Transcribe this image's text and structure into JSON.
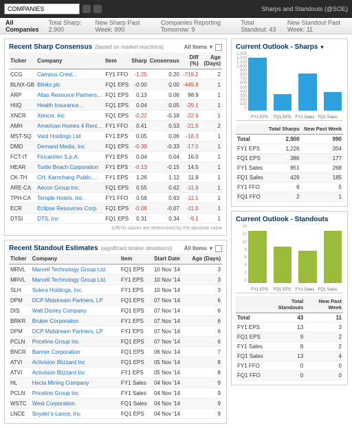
{
  "topbar": {
    "search_value": "COMPANIES",
    "title": "Sharps and Standouts (@SOE)"
  },
  "subbar": {
    "tab": "All Companies",
    "stats": [
      {
        "label": "Total Sharp:",
        "val": "2,900"
      },
      {
        "label": "New Sharp Past Week:",
        "val": "990"
      },
      {
        "label": "Companies Reporting Tomorrow:",
        "val": "9"
      },
      {
        "label": "Total Standout:",
        "val": "43"
      },
      {
        "label": "New Standout Past Week:",
        "val": "11"
      }
    ]
  },
  "sharp": {
    "title": "Recent Sharp Consensus",
    "sub": "(based on market reactions)",
    "tools": "All Items",
    "cols": [
      "Ticker",
      "Company",
      "Item",
      "Sharp",
      "Consensus",
      "Diff (%)",
      "Age (Days)"
    ],
    "rows": [
      [
        "CCG",
        "Campus Crest…",
        "FY1 FFO",
        "-1.25",
        "0.20",
        "-719.2",
        "2"
      ],
      [
        "BLNX-GB",
        "Blinkx plc",
        "FQ1 EPS",
        "-0.00",
        "0.00",
        "-449.8",
        "1"
      ],
      [
        "ARP",
        "Atlas Resource Partners…",
        "FQ1 EPS",
        "0.13",
        "0.06",
        "98.9",
        "1"
      ],
      [
        "HIIQ",
        "Health Insurance…",
        "FQ1 EPS",
        "0.04",
        "0.05",
        "-29.1",
        "1"
      ],
      [
        "XNCR",
        "Xencor, Inc",
        "FQ1 EPS",
        "-0.22",
        "-0.18",
        "-22.9",
        "1"
      ],
      [
        "AMH",
        "American Homes 4 Rent…",
        "FY1 FFO",
        "0.41",
        "0.53",
        "-21.5",
        "2"
      ],
      [
        "MST-SQ",
        "Vard Holdings Ltd",
        "FY1 EPS",
        "0.05",
        "0.06",
        "-18.3",
        "1"
      ],
      [
        "DMD",
        "Demand Media, Inc",
        "FQ1 EPS",
        "-0.39",
        "-0.33",
        "-17.0",
        "1"
      ],
      [
        "FCT-IT",
        "Fincantieri S.p.A.",
        "FY1 EPS",
        "0.04",
        "0.04",
        "16.0",
        "1"
      ],
      [
        "HEAR",
        "Turtle Beach Corporation",
        "FY1 EPS",
        "-0.13",
        "-0.15",
        "14.5",
        "1"
      ],
      [
        "CK-TH",
        "CH. Karnchang Public…",
        "FY1 EPS",
        "1.26",
        "1.12",
        "11.9",
        "1"
      ],
      [
        "ARE-CA",
        "Aecon Group Inc.",
        "FQ1 EPS",
        "0.55",
        "0.62",
        "-11.9",
        "1"
      ],
      [
        "TPH-CA",
        "Temple Hotels, Inc.",
        "FY1 FFO",
        "0.56",
        "0.63",
        "-11.1",
        "1"
      ],
      [
        "ECR",
        "Eclipse Resources Corp.",
        "FQ1 EPS",
        "-0.08",
        "-0.07",
        "-11.0",
        "1"
      ],
      [
        "DTSI",
        "DTS, Inc",
        "FQ1 EPS",
        "0.31",
        "0.34",
        "-9.1",
        "1"
      ]
    ],
    "footer": "Diff(%) values are determined by the absolute value"
  },
  "standout": {
    "title": "Recent Standout Estimates",
    "sub": "(significant broker deviations)",
    "tools": "All Items",
    "cols": [
      "Ticker",
      "Company",
      "Item",
      "Start Date",
      "Age (Days)"
    ],
    "rows": [
      [
        "MRVL",
        "Marvell Technology Group Ltd.",
        "FQ1 EPS",
        "10 Nov '14",
        "3"
      ],
      [
        "MRVL",
        "Marvell Technology Group Ltd.",
        "FY1 EPS",
        "10 Nov '14",
        "3"
      ],
      [
        "SLH",
        "Solera Holdings, Inc.",
        "FY1 EPS",
        "10 Nov '14",
        "3"
      ],
      [
        "DPM",
        "DCP Midstream Partners, LP",
        "FQ1 EPS",
        "07 Nov '14",
        "6"
      ],
      [
        "DIS",
        "Walt Disney Company",
        "FQ1 EPS",
        "07 Nov '14",
        "6"
      ],
      [
        "BRKR",
        "Bruker Corporation",
        "FY1 EPS",
        "07 Nov '14",
        "6"
      ],
      [
        "DPM",
        "DCP Midstream Partners, LP",
        "FY1 EPS",
        "07 Nov '14",
        "6"
      ],
      [
        "PCLN",
        "Priceline Group Inc",
        "FQ1 EPS",
        "07 Nov '14",
        "6"
      ],
      [
        "BNCR",
        "Banner Corporation",
        "FQ1 EPS",
        "06 Nov '14",
        "7"
      ],
      [
        "ATVI",
        "Activision Blizzard Inc",
        "FQ1 EPS",
        "05 Nov '14",
        "8"
      ],
      [
        "ATVI",
        "Activision Blizzard Inc",
        "FY1 EPS",
        "05 Nov '14",
        "8"
      ],
      [
        "HL",
        "Hecla Mining Company",
        "FY1 Sales",
        "04 Nov '14",
        "9"
      ],
      [
        "PCLN",
        "Priceline Group Inc",
        "FY1 Sales",
        "04 Nov '14",
        "9"
      ],
      [
        "WSTC",
        "West Corporation",
        "FQ1 Sales",
        "04 Nov '14",
        "9"
      ],
      [
        "LNCE",
        "Snyder's-Lance, Inc",
        "FQ1 EPS",
        "04 Nov '14",
        "9"
      ]
    ]
  },
  "outlook_sharps": {
    "title": "Current Outlook - Sharps",
    "chart": {
      "type": "bar",
      "ylim": [
        0,
        1300
      ],
      "color": "#2fa2dd",
      "bg": "#fff",
      "yticks": [
        "1,300",
        "1,200",
        "1,100",
        "1,000",
        "900",
        "800",
        "700",
        "600",
        "500",
        "400",
        "300",
        "200",
        "100",
        "0"
      ],
      "bars": [
        {
          "label": "FY1 EPS",
          "val": 1226
        },
        {
          "label": "FQ1 EPS",
          "val": 386
        },
        {
          "label": "FY1 Sales",
          "val": 851
        },
        {
          "label": "FQ1 Sales",
          "val": 429
        }
      ]
    },
    "summary": {
      "cols": [
        "",
        "Total Sharps",
        "New Past Week"
      ],
      "total": [
        "Total",
        "2,900",
        "990"
      ],
      "rows": [
        [
          "FY1 EPS",
          "1,226",
          "354"
        ],
        [
          "FQ1 EPS",
          "386",
          "177"
        ],
        [
          "FY1 Sales",
          "851",
          "268"
        ],
        [
          "FQ1 Sales",
          "429",
          "185"
        ],
        [
          "FY1 FFO",
          "6",
          "5"
        ],
        [
          "FQ1 FFO",
          "2",
          "1"
        ]
      ]
    }
  },
  "outlook_standouts": {
    "title": "Current Outlook - Standouts",
    "chart": {
      "type": "bar",
      "ylim": [
        0,
        14
      ],
      "color": "#9bbb3c",
      "bg": "#fff",
      "yticks": [
        "14",
        "12",
        "10",
        "8",
        "6",
        "4",
        "2",
        "0"
      ],
      "bars": [
        {
          "label": "FY1 EPS",
          "val": 13
        },
        {
          "label": "FQ1 EPS",
          "val": 9
        },
        {
          "label": "FY1 Sales",
          "val": 8
        },
        {
          "label": "FQ1 Sales",
          "val": 13
        }
      ]
    },
    "summary": {
      "cols": [
        "",
        "Total Standouts",
        "New Past Week"
      ],
      "total": [
        "Total",
        "43",
        "11"
      ],
      "rows": [
        [
          "FY1 EPS",
          "13",
          "3"
        ],
        [
          "FQ1 EPS",
          "9",
          "2"
        ],
        [
          "FY1 Sales",
          "8",
          "2"
        ],
        [
          "FQ1 Sales",
          "13",
          "4"
        ],
        [
          "FY1 FFO",
          "0",
          "0"
        ],
        [
          "FQ1 FFO",
          "0",
          "0"
        ]
      ]
    }
  }
}
